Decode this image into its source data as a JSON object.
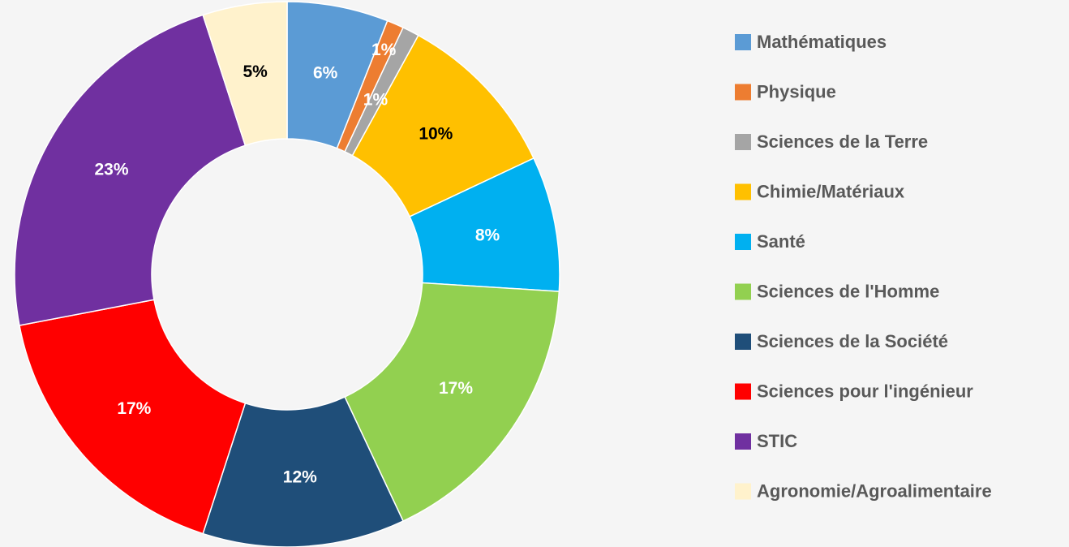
{
  "chart_data": {
    "type": "donut",
    "categories": [
      "Mathématiques",
      "Physique",
      "Sciences de la Terre",
      "Chimie/Matériaux",
      "Santé",
      "Sciences de l'Homme",
      "Sciences de la Société",
      "Sciences pour l'ingénieur",
      "STIC",
      "Agronomie/Agroalimentaire"
    ],
    "values": [
      6,
      1,
      1,
      10,
      8,
      17,
      12,
      17,
      23,
      5
    ],
    "value_labels": [
      "6%",
      "1%",
      "1%",
      "10%",
      "8%",
      "17%",
      "12%",
      "17%",
      "23%",
      "5%"
    ],
    "colors": [
      "#5b9bd5",
      "#ed7d31",
      "#a5a5a5",
      "#ffc000",
      "#00b0f0",
      "#92d050",
      "#1f4e79",
      "#ff0000",
      "#7030a0",
      "#fff2cc"
    ],
    "legend": "right"
  }
}
